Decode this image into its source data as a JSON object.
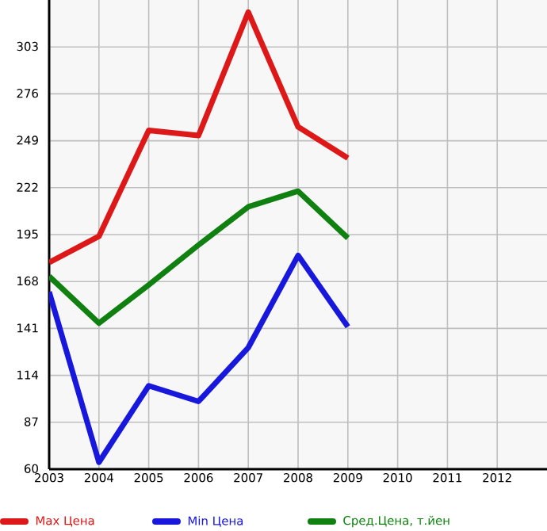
{
  "chart_data": {
    "type": "line",
    "x": [
      2003,
      2004,
      2005,
      2006,
      2007,
      2008,
      2009
    ],
    "xlim": [
      2003,
      2013
    ],
    "xticks": [
      2003,
      2004,
      2005,
      2006,
      2007,
      2008,
      2009,
      2010,
      2011,
      2012
    ],
    "ylim": [
      60,
      330
    ],
    "yticks": [
      60,
      87,
      114,
      141,
      168,
      195,
      222,
      249,
      276,
      303
    ],
    "grid": true,
    "legend": "bottom",
    "marker": "none",
    "line_style": "solid",
    "series": [
      {
        "name": "Max Цена",
        "color": "#dd1818",
        "values": [
          179,
          194,
          255,
          252,
          323,
          257,
          239
        ]
      },
      {
        "name": "Min Цена",
        "color": "#1818dd",
        "values": [
          162,
          64,
          108,
          99,
          130,
          183,
          142
        ]
      },
      {
        "name": "Сред.Цена, т.йен",
        "color": "#108010",
        "values": [
          171,
          144,
          166,
          189,
          211,
          220,
          193
        ]
      }
    ]
  }
}
